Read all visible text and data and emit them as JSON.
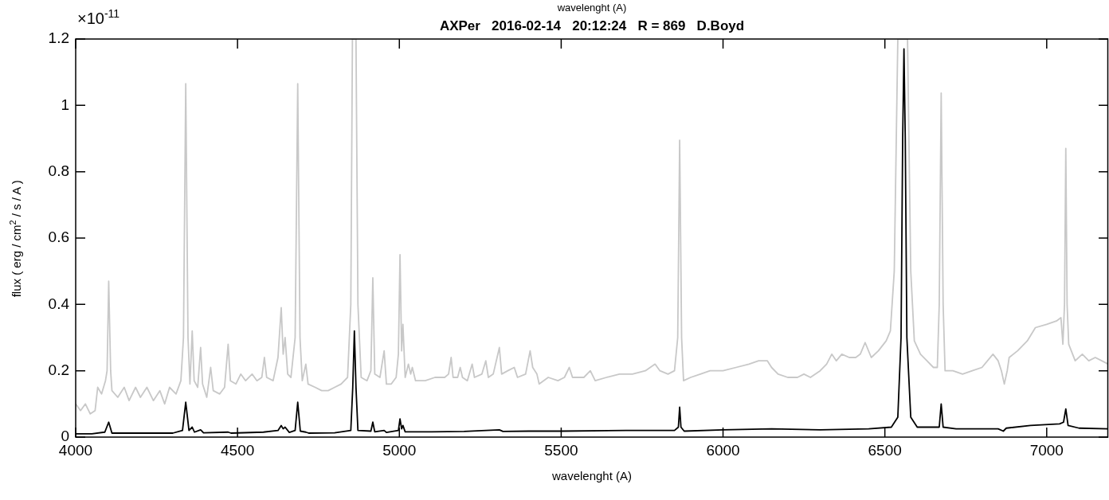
{
  "chart_data": {
    "type": "line",
    "title": "AXPer   2016-02-14   20:12:24   R = 869   D.Boyd",
    "xlabel": "wavelenght (A)",
    "x2label": "wavelenght (A)",
    "ylabel": "flux ( erg / cm$^{2}$ / s / A )",
    "annotations": [
      "×10$^{-11}$"
    ],
    "marker": "none",
    "xlim": [
      4000,
      7190
    ],
    "xticks": [
      4000,
      4500,
      5000,
      5500,
      6000,
      6500,
      7000
    ],
    "ylim": [
      0,
      1.2
    ],
    "yticks": [
      0,
      0.2,
      0.4,
      0.6,
      0.8,
      1,
      1.2
    ],
    "series": [
      {
        "color": "#c8c8c8",
        "x": [
          4000,
          4015,
          4030,
          4045,
          4060,
          4068,
          4080,
          4092,
          4097,
          4102,
          4108,
          4112,
          4130,
          4150,
          4165,
          4185,
          4200,
          4220,
          4240,
          4260,
          4275,
          4290,
          4310,
          4325,
          4333,
          4340,
          4347,
          4353,
          4360,
          4366,
          4377,
          4386,
          4392,
          4405,
          4417,
          4425,
          4445,
          4460,
          4471,
          4478,
          4495,
          4510,
          4525,
          4545,
          4560,
          4575,
          4583,
          4590,
          4610,
          4625,
          4635,
          4641,
          4647,
          4655,
          4665,
          4678,
          4686,
          4693,
          4700,
          4711,
          4718,
          4740,
          4760,
          4780,
          4800,
          4820,
          4840,
          4850,
          4855,
          4866,
          4872,
          4882,
          4900,
          4912,
          4918,
          4924,
          4940,
          4953,
          4960,
          4975,
          4990,
          4997,
          5002,
          5007,
          5011,
          5018,
          5028,
          5035,
          5040,
          5050,
          5080,
          5110,
          5140,
          5152,
          5160,
          5166,
          5180,
          5188,
          5195,
          5210,
          5225,
          5232,
          5255,
          5267,
          5275,
          5290,
          5309,
          5316,
          5335,
          5355,
          5365,
          5390,
          5404,
          5412,
          5425,
          5432,
          5460,
          5490,
          5510,
          5525,
          5535,
          5570,
          5590,
          5605,
          5640,
          5680,
          5720,
          5760,
          5790,
          5805,
          5830,
          5850,
          5860,
          5866,
          5872,
          5878,
          5900,
          5930,
          5960,
          6000,
          6040,
          6080,
          6110,
          6137,
          6150,
          6170,
          6200,
          6230,
          6250,
          6270,
          6300,
          6320,
          6336,
          6350,
          6367,
          6390,
          6410,
          6424,
          6439,
          6458,
          6480,
          6504,
          6517,
          6529,
          6540,
          6570,
          6580,
          6591,
          6610,
          6630,
          6650,
          6662,
          6668,
          6674,
          6680,
          6686,
          6710,
          6740,
          6770,
          6800,
          6834,
          6850,
          6860,
          6869,
          6878,
          6884,
          6910,
          6940,
          6965,
          7000,
          7030,
          7044,
          7050,
          7055,
          7059,
          7063,
          7068,
          7088,
          7110,
          7130,
          7150,
          7170,
          7190
        ],
        "values": [
          0.1,
          0.08,
          0.1,
          0.07,
          0.08,
          0.15,
          0.13,
          0.17,
          0.2,
          0.47,
          0.2,
          0.14,
          0.12,
          0.15,
          0.11,
          0.15,
          0.12,
          0.15,
          0.11,
          0.14,
          0.1,
          0.15,
          0.13,
          0.17,
          0.3,
          1.065,
          0.3,
          0.16,
          0.32,
          0.17,
          0.15,
          0.27,
          0.16,
          0.12,
          0.21,
          0.14,
          0.13,
          0.15,
          0.28,
          0.17,
          0.16,
          0.19,
          0.17,
          0.19,
          0.17,
          0.18,
          0.24,
          0.18,
          0.17,
          0.24,
          0.39,
          0.25,
          0.3,
          0.19,
          0.18,
          0.3,
          1.065,
          0.3,
          0.17,
          0.22,
          0.16,
          0.15,
          0.14,
          0.14,
          0.15,
          0.16,
          0.18,
          0.4,
          1.2,
          1.2,
          0.4,
          0.18,
          0.17,
          0.2,
          0.48,
          0.19,
          0.18,
          0.26,
          0.16,
          0.16,
          0.18,
          0.25,
          0.55,
          0.26,
          0.34,
          0.18,
          0.22,
          0.19,
          0.21,
          0.17,
          0.17,
          0.18,
          0.18,
          0.19,
          0.24,
          0.18,
          0.18,
          0.21,
          0.18,
          0.17,
          0.22,
          0.18,
          0.19,
          0.23,
          0.18,
          0.19,
          0.27,
          0.19,
          0.2,
          0.21,
          0.18,
          0.19,
          0.26,
          0.21,
          0.19,
          0.16,
          0.18,
          0.17,
          0.18,
          0.21,
          0.18,
          0.18,
          0.2,
          0.17,
          0.18,
          0.19,
          0.19,
          0.2,
          0.22,
          0.2,
          0.19,
          0.2,
          0.3,
          0.895,
          0.3,
          0.17,
          0.18,
          0.19,
          0.2,
          0.2,
          0.21,
          0.22,
          0.23,
          0.23,
          0.21,
          0.19,
          0.18,
          0.18,
          0.19,
          0.18,
          0.2,
          0.22,
          0.25,
          0.23,
          0.25,
          0.24,
          0.24,
          0.25,
          0.285,
          0.24,
          0.26,
          0.29,
          0.32,
          0.5,
          1.2,
          1.2,
          0.5,
          0.29,
          0.25,
          0.23,
          0.21,
          0.21,
          0.4,
          1.037,
          0.4,
          0.2,
          0.2,
          0.19,
          0.2,
          0.21,
          0.25,
          0.23,
          0.2,
          0.16,
          0.2,
          0.24,
          0.26,
          0.29,
          0.33,
          0.34,
          0.35,
          0.36,
          0.28,
          0.4,
          0.87,
          0.4,
          0.28,
          0.23,
          0.25,
          0.23,
          0.24,
          0.23,
          0.22
        ]
      },
      {
        "color": "#000000",
        "x": [
          4000,
          4050,
          4090,
          4102,
          4112,
          4200,
          4300,
          4330,
          4340,
          4350,
          4360,
          4367,
          4386,
          4395,
          4471,
          4480,
          4580,
          4625,
          4635,
          4641,
          4647,
          4660,
          4678,
          4686,
          4694,
          4711,
          4720,
          4800,
          4850,
          4856,
          4861,
          4866,
          4872,
          4912,
          4918,
          4924,
          4953,
          4960,
          4997,
          5002,
          5007,
          5011,
          5018,
          5100,
          5200,
          5309,
          5320,
          5400,
          5500,
          5700,
          5850,
          5862,
          5866,
          5870,
          5880,
          6000,
          6150,
          6300,
          6450,
          6520,
          6540,
          6550,
          6555,
          6559,
          6563,
          6568,
          6580,
          6600,
          6668,
          6674,
          6680,
          6720,
          6850,
          6866,
          6875,
          6950,
          7040,
          7052,
          7059,
          7066,
          7100,
          7190
        ],
        "values": [
          0.01,
          0.01,
          0.015,
          0.045,
          0.012,
          0.012,
          0.012,
          0.02,
          0.105,
          0.02,
          0.03,
          0.015,
          0.022,
          0.013,
          0.015,
          0.012,
          0.015,
          0.02,
          0.035,
          0.025,
          0.03,
          0.014,
          0.02,
          0.105,
          0.018,
          0.015,
          0.012,
          0.013,
          0.02,
          0.15,
          0.32,
          0.15,
          0.02,
          0.018,
          0.045,
          0.016,
          0.02,
          0.014,
          0.02,
          0.055,
          0.025,
          0.035,
          0.016,
          0.016,
          0.017,
          0.022,
          0.017,
          0.018,
          0.018,
          0.02,
          0.02,
          0.03,
          0.09,
          0.03,
          0.018,
          0.022,
          0.025,
          0.022,
          0.025,
          0.03,
          0.06,
          0.3,
          0.9,
          1.17,
          0.9,
          0.3,
          0.06,
          0.03,
          0.03,
          0.1,
          0.03,
          0.025,
          0.025,
          0.018,
          0.027,
          0.035,
          0.04,
          0.045,
          0.085,
          0.035,
          0.027,
          0.025
        ]
      }
    ]
  }
}
